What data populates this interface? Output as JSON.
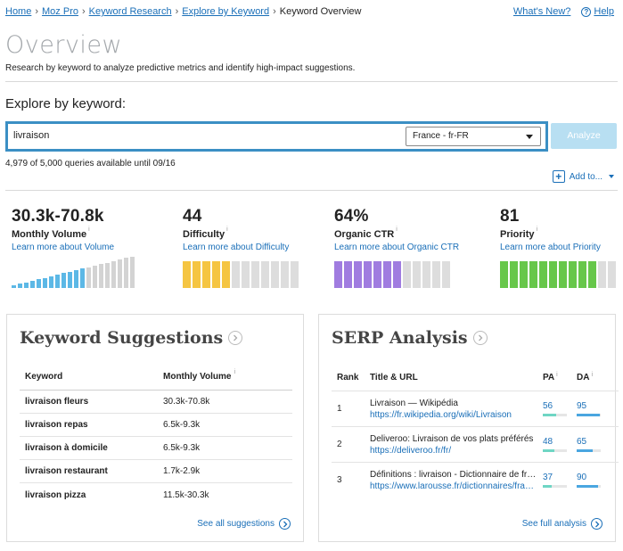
{
  "breadcrumb": {
    "items": [
      "Home",
      "Moz Pro",
      "Keyword Research",
      "Explore by Keyword"
    ],
    "current": "Keyword Overview"
  },
  "header_links": {
    "whats_new": "What's New?",
    "help": "Help"
  },
  "page": {
    "title": "Overview",
    "subtitle": "Research by keyword to analyze predictive metrics and identify high-impact suggestions."
  },
  "explore": {
    "label": "Explore by keyword:",
    "query": "livraison",
    "locale": "France - fr-FR",
    "analyze_label": "Analyze",
    "queries_status": "4,979 of 5,000 queries available until 09/16",
    "add_to_label": "Add to..."
  },
  "colors": {
    "volume_fill": "#5cb8e6",
    "volume_empty": "#d3d3d3",
    "difficulty_fill": "#f5c542",
    "ctr_fill": "#a07ce0",
    "priority_fill": "#67c74a",
    "empty": "#dddddd",
    "pa": "#6fd6c4",
    "da": "#4aa6e0"
  },
  "metrics": {
    "volume": {
      "value": "30.3k-70.8k",
      "label": "Monthly Volume",
      "link": "Learn more about Volume",
      "filled_bars": 12,
      "total_bars": 20
    },
    "difficulty": {
      "value": "44",
      "label": "Difficulty",
      "link": "Learn more about Difficulty",
      "filled_segments": 5,
      "total_segments": 12
    },
    "ctr": {
      "value": "64%",
      "label": "Organic CTR",
      "link": "Learn more about Organic CTR",
      "filled_segments": 7,
      "total_segments": 12
    },
    "priority": {
      "value": "81",
      "label": "Priority",
      "link": "Learn more about Priority",
      "filled_segments": 10,
      "total_segments": 12
    }
  },
  "keyword_suggestions": {
    "title": "Keyword Suggestions",
    "columns": [
      "Keyword",
      "Monthly Volume"
    ],
    "rows": [
      {
        "keyword": "livraison fleurs",
        "volume": "30.3k-70.8k"
      },
      {
        "keyword": "livraison repas",
        "volume": "6.5k-9.3k"
      },
      {
        "keyword": "livraison à domicile",
        "volume": "6.5k-9.3k"
      },
      {
        "keyword": "livraison restaurant",
        "volume": "1.7k-2.9k"
      },
      {
        "keyword": "livraison pizza",
        "volume": "11.5k-30.3k"
      }
    ],
    "see_all": "See all suggestions"
  },
  "serp_analysis": {
    "title": "SERP Analysis",
    "columns": [
      "Rank",
      "Title & URL",
      "PA",
      "DA"
    ],
    "rows": [
      {
        "rank": "1",
        "title": "Livraison — Wikipédia",
        "url": "https://fr.wikipedia.org/wiki/Livraison",
        "pa": "56",
        "da": "95"
      },
      {
        "rank": "2",
        "title": "Deliveroo: Livraison de vos plats préférés",
        "url": "https://deliveroo.fr/fr/",
        "pa": "48",
        "da": "65"
      },
      {
        "rank": "3",
        "title": "Définitions : livraison - Dictionnaire de français Larousse",
        "url": "https://www.larousse.fr/dictionnaires/francais/livraison",
        "pa": "37",
        "da": "90"
      }
    ],
    "see_full": "See full analysis"
  }
}
